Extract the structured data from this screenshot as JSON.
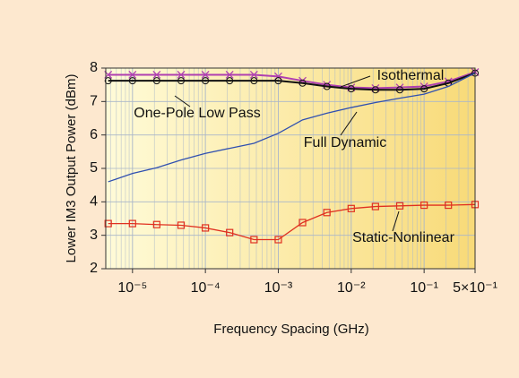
{
  "chart_data": {
    "type": "line",
    "xlabel": "Frequency Spacing (GHz)",
    "ylabel": "Lower IM3 Output Power (dBm)",
    "log_x": true,
    "grid": true,
    "xlim": [
      4.3e-06,
      0.5
    ],
    "ylim": [
      2,
      8
    ],
    "xticks": [
      {
        "value": 1e-05,
        "label": "10⁻⁵"
      },
      {
        "value": 0.0001,
        "label": "10⁻⁴"
      },
      {
        "value": 0.001,
        "label": "10⁻³"
      },
      {
        "value": 0.01,
        "label": "10⁻²"
      },
      {
        "value": 0.1,
        "label": "10⁻¹"
      },
      {
        "value": 0.5,
        "label": "5×10⁻¹"
      }
    ],
    "yticks": [
      2,
      3,
      4,
      5,
      6,
      7,
      8
    ],
    "x": [
      4.64e-06,
      1e-05,
      2.15e-05,
      4.64e-05,
      0.0001,
      0.000215,
      0.000464,
      0.001,
      0.00215,
      0.00464,
      0.01,
      0.0215,
      0.0464,
      0.1,
      0.215,
      0.5
    ],
    "series": [
      {
        "name": "Isothermal",
        "color": "#b040b0",
        "marker": "x",
        "values": [
          7.8,
          7.8,
          7.8,
          7.8,
          7.8,
          7.8,
          7.8,
          7.75,
          7.62,
          7.5,
          7.42,
          7.4,
          7.42,
          7.45,
          7.6,
          7.88
        ]
      },
      {
        "name": "One-Pole Low Pass",
        "color": "#111111",
        "marker": "o",
        "values": [
          7.62,
          7.62,
          7.62,
          7.62,
          7.62,
          7.62,
          7.62,
          7.62,
          7.55,
          7.45,
          7.38,
          7.35,
          7.35,
          7.38,
          7.55,
          7.85
        ]
      },
      {
        "name": "Full Dynamic",
        "color": "#3050b0",
        "marker": "none",
        "values": [
          4.6,
          4.85,
          5.02,
          5.25,
          5.45,
          5.6,
          5.75,
          6.05,
          6.45,
          6.65,
          6.82,
          6.97,
          7.1,
          7.22,
          7.45,
          7.85
        ]
      },
      {
        "name": "Static-Nonlinear",
        "color": "#e03020",
        "marker": "s",
        "values": [
          3.35,
          3.35,
          3.32,
          3.3,
          3.22,
          3.08,
          2.87,
          2.87,
          3.38,
          3.68,
          3.8,
          3.86,
          3.88,
          3.9,
          3.9,
          3.92
        ]
      }
    ]
  }
}
